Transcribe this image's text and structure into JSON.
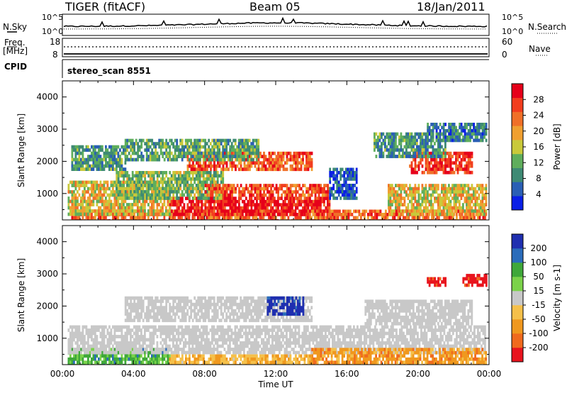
{
  "header": {
    "radar": "TIGER (fitACF)",
    "beam": "Beam 05",
    "date": "18/Jan/2011"
  },
  "status_panels": {
    "nsky_label": "N.Sky",
    "nsky_ticks": [
      "10^5",
      "10^0"
    ],
    "nsearch_label": "N.Search",
    "freq_label_1": "Freq.",
    "freq_label_2": "[MHz]",
    "freq_ticks": [
      "18",
      "8"
    ],
    "nave_ticks": [
      "60",
      "0"
    ],
    "nave_label": "Nave",
    "cpid_label": "CPID",
    "cpid_value": "stereo_scan 8551"
  },
  "colors": {
    "power_scale": [
      "#0a1fe6",
      "#2a5fb5",
      "#3e8a74",
      "#5fae5c",
      "#c9c93a",
      "#f0a030",
      "#f07028",
      "#f23d1e",
      "#e6001a"
    ],
    "velocity_scale": [
      "#e8141e",
      "#f06a1e",
      "#f0981e",
      "#f5c04a",
      "#c8c8c8",
      "#7bd24a",
      "#3fa83a",
      "#2a6cbb",
      "#1f2fb0"
    ],
    "ground_scatter": "#c8c8c8"
  },
  "chart_data": [
    {
      "type": "heatmap",
      "name": "power",
      "ylabel": "Slant Range [km]",
      "xlabel": "",
      "x_ticks": [
        "00:00",
        "04:00",
        "08:00",
        "12:00",
        "16:00",
        "20:00",
        "00:00"
      ],
      "y_ticks": [
        "1000",
        "2000",
        "3000",
        "4000"
      ],
      "xlim": [
        0,
        24
      ],
      "ylim": [
        180,
        4500
      ],
      "colorbar_label": "Power [dB]",
      "colorbar_ticks": [
        "4",
        "8",
        "12",
        "16",
        "20",
        "24",
        "28"
      ],
      "colorbar_range": [
        0,
        32
      ],
      "regions": [
        {
          "t": [
            0.5,
            23.8
          ],
          "r": [
            200,
            500
          ],
          "level": 0.75
        },
        {
          "t": [
            6.0,
            15.0
          ],
          "r": [
            350,
            900
          ],
          "level": 0.92
        },
        {
          "t": [
            0.3,
            6.0
          ],
          "r": [
            400,
            1400
          ],
          "level": 0.55
        },
        {
          "t": [
            3.0,
            9.0
          ],
          "r": [
            900,
            1700
          ],
          "level": 0.4
        },
        {
          "t": [
            8.0,
            15.0
          ],
          "r": [
            1000,
            1300
          ],
          "level": 0.8
        },
        {
          "t": [
            7.0,
            14.0
          ],
          "r": [
            1800,
            2300
          ],
          "level": 0.78
        },
        {
          "t": [
            3.5,
            11.0
          ],
          "r": [
            2100,
            2700
          ],
          "level": 0.35
        },
        {
          "t": [
            0.5,
            3.5
          ],
          "r": [
            1800,
            2500
          ],
          "level": 0.3
        },
        {
          "t": [
            15.0,
            16.5
          ],
          "r": [
            900,
            1800
          ],
          "level": 0.15
        },
        {
          "t": [
            18.3,
            23.8
          ],
          "r": [
            400,
            1300
          ],
          "level": 0.55
        },
        {
          "t": [
            19.5,
            23.0
          ],
          "r": [
            1700,
            2300
          ],
          "level": 0.85
        },
        {
          "t": [
            17.5,
            21.5
          ],
          "r": [
            2200,
            2900
          ],
          "level": 0.3
        },
        {
          "t": [
            20.5,
            23.8
          ],
          "r": [
            2700,
            3200
          ],
          "level": 0.25
        }
      ]
    },
    {
      "type": "heatmap",
      "name": "velocity",
      "ylabel": "Slant Range [km]",
      "xlabel": "Time UT",
      "x_ticks": [
        "00:00",
        "04:00",
        "08:00",
        "12:00",
        "16:00",
        "20:00",
        "00:00"
      ],
      "y_ticks": [
        "1000",
        "2000",
        "3000",
        "4000"
      ],
      "xlim": [
        0,
        24
      ],
      "ylim": [
        180,
        4500
      ],
      "colorbar_label": "Velocity [m s-1]",
      "colorbar_ticks": [
        "-200",
        "-100",
        "-50",
        "-15",
        "15",
        "50",
        "100",
        "200"
      ],
      "regions": [
        {
          "t": [
            0.3,
            6.0
          ],
          "r": [
            200,
            700
          ],
          "level": 0.7
        },
        {
          "t": [
            0.3,
            23.8
          ],
          "r": [
            600,
            1400
          ],
          "level": 0.5
        },
        {
          "t": [
            3.5,
            14.0
          ],
          "r": [
            1600,
            2300
          ],
          "level": 0.5
        },
        {
          "t": [
            11.5,
            13.5
          ],
          "r": [
            1800,
            2300
          ],
          "level": 0.95
        },
        {
          "t": [
            14.0,
            23.8
          ],
          "r": [
            200,
            700
          ],
          "level": 0.28
        },
        {
          "t": [
            6.0,
            14.0
          ],
          "r": [
            200,
            500
          ],
          "level": 0.36
        },
        {
          "t": [
            17.0,
            23.0
          ],
          "r": [
            1500,
            2200
          ],
          "level": 0.5
        },
        {
          "t": [
            20.5,
            21.5
          ],
          "r": [
            2700,
            2900
          ],
          "level": 0.05
        },
        {
          "t": [
            22.5,
            23.8
          ],
          "r": [
            2700,
            3000
          ],
          "level": 0.06
        }
      ]
    }
  ]
}
